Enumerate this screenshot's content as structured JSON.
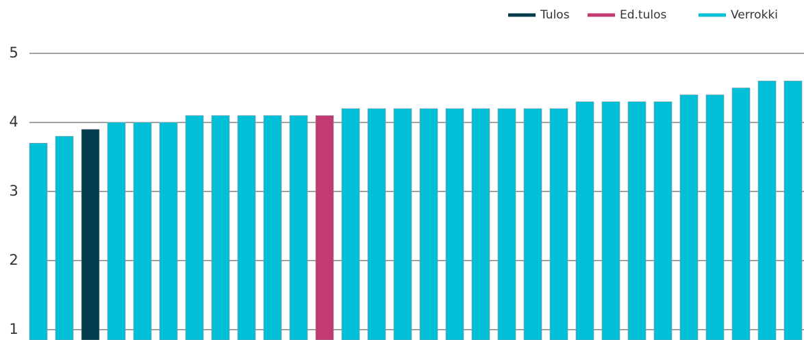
{
  "chart_data": {
    "type": "bar",
    "categories": [
      null,
      null,
      null,
      null,
      null,
      null,
      null,
      null,
      null,
      null,
      null,
      null,
      null,
      null,
      null,
      null,
      null,
      null,
      null,
      null,
      null,
      null,
      null,
      null,
      null,
      null,
      null,
      null,
      null,
      null
    ],
    "series": [
      {
        "name": "Tulos",
        "color": "#023b4b",
        "values": [
          null,
          null,
          3.9,
          null,
          null,
          null,
          null,
          null,
          null,
          null,
          null,
          null,
          null,
          null,
          null,
          null,
          null,
          null,
          null,
          null,
          null,
          null,
          null,
          null,
          null,
          null,
          null,
          null,
          null,
          null
        ]
      },
      {
        "name": "Ed.tulos",
        "color": "#c23a70",
        "values": [
          null,
          null,
          null,
          null,
          null,
          null,
          null,
          null,
          null,
          null,
          null,
          4.1,
          null,
          null,
          null,
          null,
          null,
          null,
          null,
          null,
          null,
          null,
          null,
          null,
          null,
          null,
          null,
          null,
          null,
          null
        ]
      },
      {
        "name": "Verrokki",
        "color": "#00bfd6",
        "values": [
          3.7,
          3.8,
          null,
          4.0,
          4.0,
          4.0,
          4.1,
          4.1,
          4.1,
          4.1,
          4.1,
          null,
          4.2,
          4.2,
          4.2,
          4.2,
          4.2,
          4.2,
          4.2,
          4.2,
          4.2,
          4.3,
          4.3,
          4.3,
          4.3,
          4.4,
          4.4,
          4.5,
          4.6,
          4.6
        ]
      }
    ],
    "ylim": [
      0.85,
      5
    ],
    "yticks": [
      1,
      2,
      3,
      4,
      5
    ],
    "grid": true,
    "legend": "top-right"
  }
}
